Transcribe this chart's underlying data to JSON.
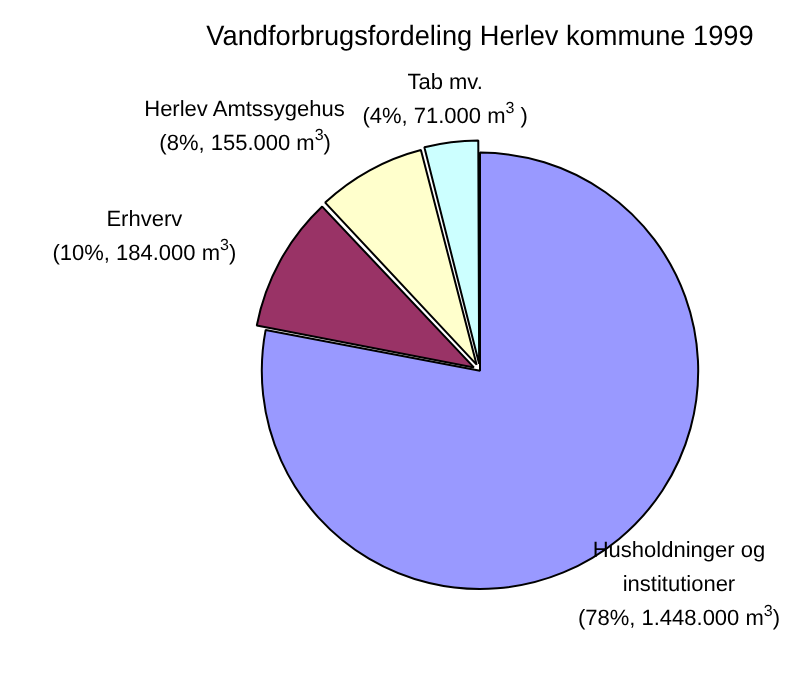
{
  "chart_data": {
    "type": "pie",
    "title": "Vandforbrugsfordeling Herlev kommune 1999",
    "categories": [
      "Husholdninger og institutioner",
      "Erhverv",
      "Herlev Amtssygehus",
      "Tab mv."
    ],
    "values": [
      78,
      10,
      8,
      4
    ],
    "value_labels": [
      "(78%, 1.448.000 m$^{3}$)",
      "(10%, 184.000 m$^{3}$)",
      "(8%, 155.000 m$^{3}$)",
      "(4%, 71.000 m$^{3}$ )"
    ],
    "colors": [
      "#9999ff",
      "#993366",
      "#ffffcc",
      "#ccffff"
    ],
    "legend": false
  }
}
